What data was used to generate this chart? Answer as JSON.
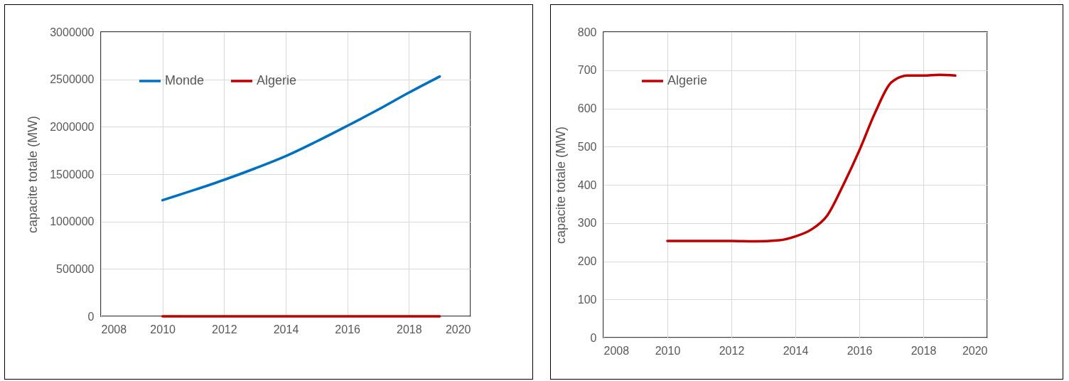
{
  "chart_data": [
    {
      "type": "line",
      "ylabel": "capacite totale (MW)",
      "x": [
        2010,
        2011,
        2012,
        2013,
        2014,
        2015,
        2016,
        2017,
        2018,
        2019
      ],
      "series": [
        {
          "name": "Monde",
          "color": "#0070c0",
          "values": [
            1225000,
            1330000,
            1440000,
            1560000,
            1690000,
            1845000,
            2010000,
            2180000,
            2360000,
            2530000
          ]
        },
        {
          "name": "Algerie",
          "color": "#c00000",
          "values": [
            0,
            0,
            0,
            0,
            0,
            0,
            0,
            0,
            0,
            0
          ]
        }
      ],
      "xlim": [
        2008,
        2020
      ],
      "xticks": [
        2008,
        2010,
        2012,
        2014,
        2016,
        2018,
        2020
      ],
      "ylim": [
        0,
        3000000
      ],
      "yticks": [
        0,
        500000,
        1000000,
        1500000,
        2000000,
        2500000,
        3000000
      ],
      "grid": true,
      "legend": "top left",
      "line_style": "solid"
    },
    {
      "type": "line",
      "ylabel": "capacite totale (MW)",
      "series": [
        {
          "name": "Algerie",
          "color": "#c00000",
          "x": [
            2010,
            2011,
            2012,
            2012.7,
            2013.5,
            2014,
            2014.5,
            2015,
            2015.5,
            2016,
            2016.5,
            2017,
            2017.5,
            2018,
            2018.5,
            2019
          ],
          "values": [
            253,
            253,
            253,
            252,
            255,
            265,
            283,
            320,
            400,
            490,
            590,
            668,
            686,
            686,
            688,
            686
          ]
        }
      ],
      "xlim": [
        2008,
        2020
      ],
      "xticks": [
        2008,
        2010,
        2012,
        2014,
        2016,
        2018,
        2020
      ],
      "ylim": [
        0,
        800
      ],
      "yticks": [
        0,
        100,
        200,
        300,
        400,
        500,
        600,
        700,
        800
      ],
      "grid": true,
      "legend": "top left",
      "line_style": "solid"
    }
  ]
}
